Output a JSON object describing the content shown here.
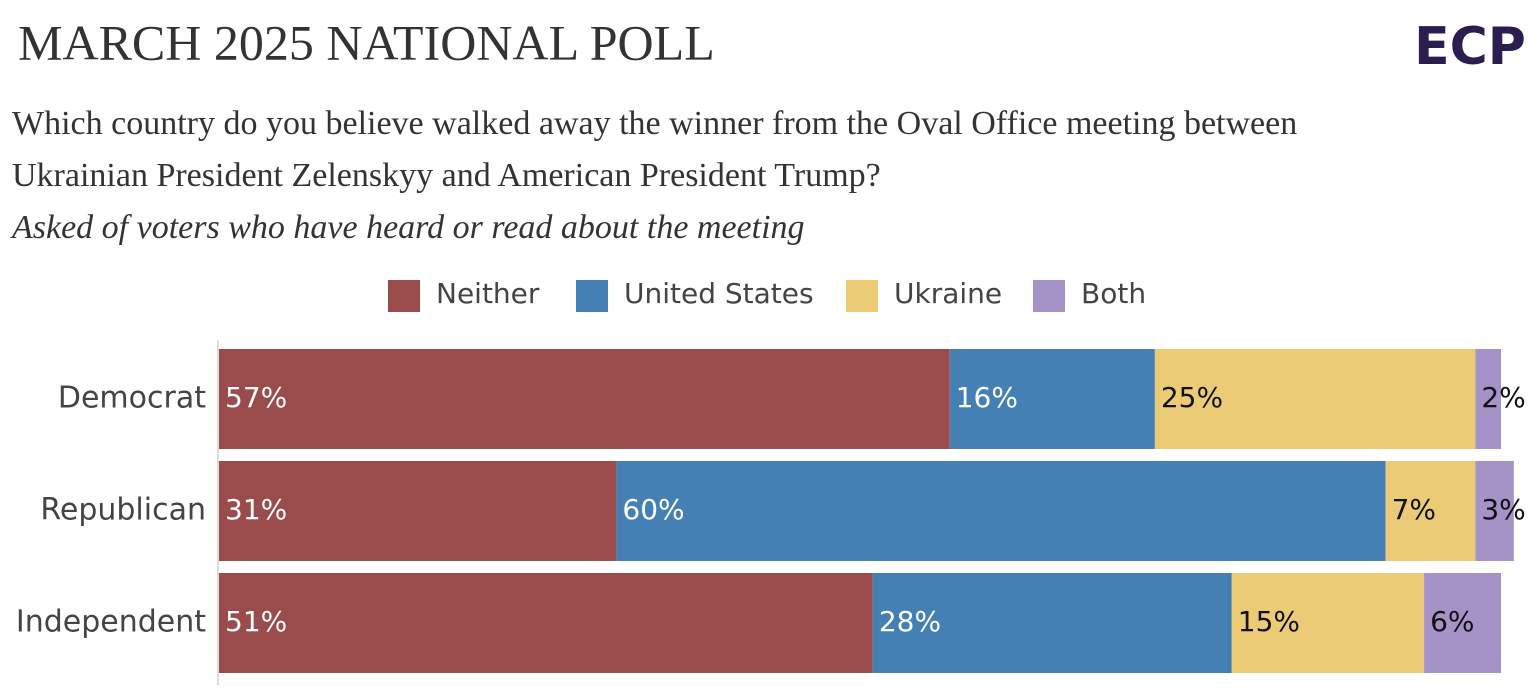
{
  "header": {
    "title": "MARCH 2025 NATIONAL POLL",
    "logo": "ECP"
  },
  "chart_data": {
    "type": "stacked-bar-horizontal",
    "question_lines": [
      "Which country do you believe walked away the winner from the Oval Office meeting between",
      "Ukrainian President Zelenskyy and American President Trump?"
    ],
    "subtitle": "Asked of voters who have heard or read about the meeting",
    "categories": [
      "Democrat",
      "Republican",
      "Independent"
    ],
    "xlim": [
      0,
      100
    ],
    "series": [
      {
        "name": "Neither",
        "color": "#9a4c4c",
        "text_color": "#ffffff",
        "values": [
          57,
          31,
          51
        ],
        "value_labels": [
          "57%",
          "31%",
          "51%"
        ]
      },
      {
        "name": "United States",
        "color": "#4580b5",
        "text_color": "#ffffff",
        "values": [
          16,
          60,
          28
        ],
        "value_labels": [
          "16%",
          "60%",
          "28%"
        ]
      },
      {
        "name": "Ukraine",
        "color": "#eccb76",
        "text_color": "#111111",
        "values": [
          25,
          7,
          15
        ],
        "value_labels": [
          "25%",
          "7%",
          "15%"
        ]
      },
      {
        "name": "Both",
        "color": "#a592c6",
        "text_color": "#111111",
        "values": [
          2,
          3,
          6
        ],
        "value_labels": [
          "2%",
          "3%",
          "6%"
        ]
      }
    ]
  }
}
